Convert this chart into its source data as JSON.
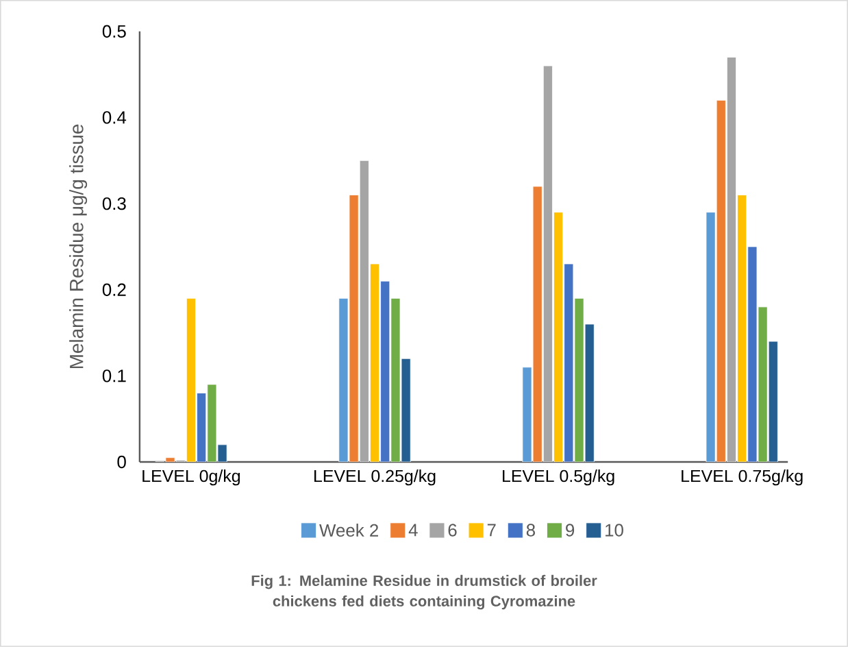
{
  "chart_data": {
    "type": "bar",
    "categories": [
      "LEVEL 0g/kg",
      "LEVEL 0.25g/kg",
      "LEVEL 0.5g/kg",
      "LEVEL 0.75g/kg"
    ],
    "series": [
      {
        "name": "Week 2",
        "color": "#5b9bd5",
        "values": [
          0,
          0.19,
          0.11,
          0.29
        ]
      },
      {
        "name": "4",
        "color": "#ed7d31",
        "values": [
          0.005,
          0.31,
          0.32,
          0.42
        ]
      },
      {
        "name": "6",
        "color": "#a5a5a5",
        "values": [
          0.002,
          0.35,
          0.46,
          0.47
        ]
      },
      {
        "name": "7",
        "color": "#ffc000",
        "values": [
          0.19,
          0.23,
          0.29,
          0.31
        ]
      },
      {
        "name": "8",
        "color": "#4472c4",
        "values": [
          0.08,
          0.21,
          0.23,
          0.25
        ]
      },
      {
        "name": "9",
        "color": "#70ad47",
        "values": [
          0.09,
          0.19,
          0.19,
          0.18
        ]
      },
      {
        "name": "10",
        "color": "#255e91",
        "values": [
          0.02,
          0.12,
          0.16,
          0.14
        ]
      }
    ],
    "ylabel": "Melamin Residue μg/g tissue",
    "ylim": [
      0,
      0.5
    ],
    "yticks": [
      0,
      0.1,
      0.2,
      0.3,
      0.4,
      0.5
    ],
    "legend": "bottom",
    "annotations": [
      "Fig 1: Melamine Residue in drumstick of broiler chickens fed diets containing Cyromazine"
    ]
  }
}
